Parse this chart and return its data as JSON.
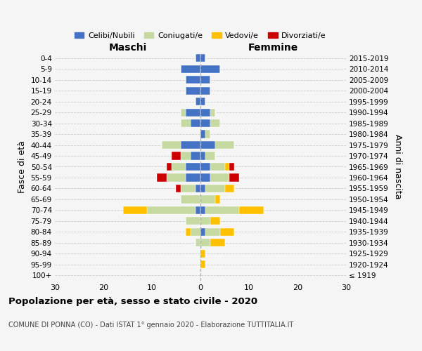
{
  "age_groups": [
    "100+",
    "95-99",
    "90-94",
    "85-89",
    "80-84",
    "75-79",
    "70-74",
    "65-69",
    "60-64",
    "55-59",
    "50-54",
    "45-49",
    "40-44",
    "35-39",
    "30-34",
    "25-29",
    "20-24",
    "15-19",
    "10-14",
    "5-9",
    "0-4"
  ],
  "birth_years": [
    "≤ 1919",
    "1920-1924",
    "1925-1929",
    "1930-1934",
    "1935-1939",
    "1940-1944",
    "1945-1949",
    "1950-1954",
    "1955-1959",
    "1960-1964",
    "1965-1969",
    "1970-1974",
    "1975-1979",
    "1980-1984",
    "1985-1989",
    "1990-1994",
    "1995-1999",
    "2000-2004",
    "2005-2009",
    "2010-2014",
    "2015-2019"
  ],
  "male": {
    "celibi": [
      0,
      0,
      0,
      0,
      0,
      0,
      1,
      0,
      1,
      3,
      3,
      2,
      4,
      0,
      2,
      3,
      1,
      3,
      3,
      4,
      1
    ],
    "coniugati": [
      0,
      0,
      0,
      1,
      2,
      3,
      10,
      4,
      3,
      4,
      3,
      2,
      4,
      0,
      2,
      1,
      0,
      0,
      0,
      0,
      0
    ],
    "vedovi": [
      0,
      0,
      0,
      0,
      1,
      0,
      5,
      0,
      0,
      0,
      0,
      0,
      0,
      0,
      0,
      0,
      0,
      0,
      0,
      0,
      0
    ],
    "divorziati": [
      0,
      0,
      0,
      0,
      0,
      0,
      0,
      0,
      1,
      2,
      1,
      2,
      0,
      0,
      0,
      0,
      0,
      0,
      0,
      0,
      0
    ]
  },
  "female": {
    "nubili": [
      0,
      0,
      0,
      0,
      1,
      0,
      1,
      0,
      1,
      2,
      2,
      1,
      3,
      1,
      2,
      2,
      1,
      2,
      2,
      4,
      1
    ],
    "coniugate": [
      0,
      0,
      0,
      2,
      3,
      2,
      7,
      3,
      4,
      4,
      3,
      2,
      4,
      1,
      2,
      1,
      0,
      0,
      0,
      0,
      0
    ],
    "vedove": [
      0,
      1,
      1,
      3,
      3,
      2,
      5,
      1,
      2,
      0,
      1,
      0,
      0,
      0,
      0,
      0,
      0,
      0,
      0,
      0,
      0
    ],
    "divorziate": [
      0,
      0,
      0,
      0,
      0,
      0,
      0,
      0,
      0,
      2,
      1,
      0,
      0,
      0,
      0,
      0,
      0,
      0,
      0,
      0,
      0
    ]
  },
  "colors": {
    "celibi": "#4472c4",
    "coniugati": "#c5d9a0",
    "vedovi": "#ffc000",
    "divorziati": "#cc0000"
  },
  "xlim": 30,
  "title": "Popolazione per età, sesso e stato civile - 2020",
  "subtitle": "COMUNE DI PONNA (CO) - Dati ISTAT 1° gennaio 2020 - Elaborazione TUTTITALIA.IT",
  "ylabel_left": "Fasce di età",
  "ylabel_right": "Anni di nascita",
  "xlabel_maschi": "Maschi",
  "xlabel_femmine": "Femmine",
  "legend_labels": [
    "Celibi/Nubili",
    "Coniugati/e",
    "Vedovi/e",
    "Divorziati/e"
  ],
  "bg_color": "#f5f5f5"
}
